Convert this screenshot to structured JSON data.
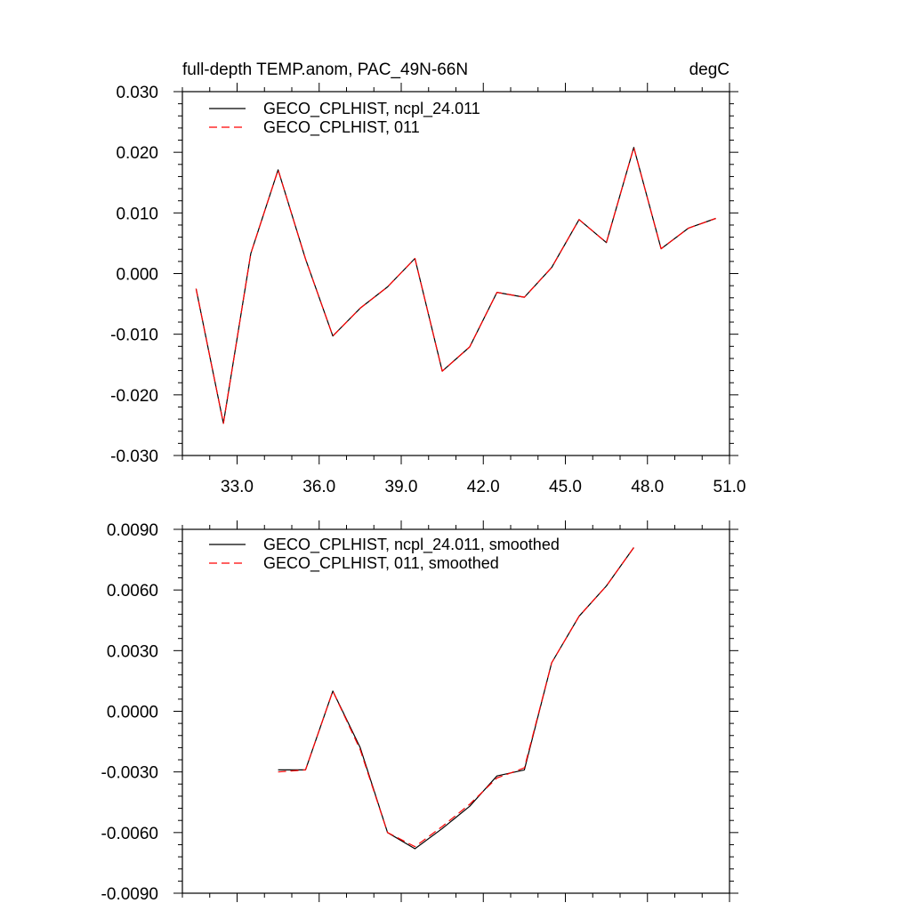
{
  "chart_data": [
    {
      "type": "line",
      "title": "full-depth TEMP.anom, PAC_49N-66N",
      "units": "degC",
      "xlim": [
        31,
        51
      ],
      "ylim": [
        -0.03,
        0.03
      ],
      "x_ticks": [
        33,
        36,
        39,
        42,
        45,
        48,
        51
      ],
      "x_tick_labels": [
        "33.0",
        "36.0",
        "39.0",
        "42.0",
        "45.0",
        "48.0",
        "51.0"
      ],
      "y_ticks": [
        -0.03,
        -0.02,
        -0.01,
        0,
        0.01,
        0.02,
        0.03
      ],
      "y_tick_labels": [
        "-0.030",
        "-0.020",
        "-0.010",
        "0.000",
        "0.010",
        "0.020",
        "0.030"
      ],
      "legend_position": "top-left",
      "series": [
        {
          "name": "GECO_CPLHIST, ncpl_24.011",
          "color": "#000000",
          "dash": "solid",
          "x": [
            31.5,
            32.5,
            33.5,
            34.5,
            35.5,
            36.5,
            37.5,
            38.5,
            39.5,
            40.5,
            41.5,
            42.5,
            43.5,
            44.5,
            45.5,
            46.5,
            47.5,
            48.5,
            49.5,
            50.5
          ],
          "y": [
            -0.0025,
            -0.0247,
            0.0033,
            0.0171,
            0.0024,
            -0.0103,
            -0.0057,
            -0.0022,
            0.0025,
            -0.0161,
            -0.0121,
            -0.0031,
            -0.0039,
            0.001,
            0.0089,
            0.0051,
            0.0208,
            0.0041,
            0.0075,
            0.0091
          ]
        },
        {
          "name": "GECO_CPLHIST, 011",
          "color": "#ff0000",
          "dash": "dashed",
          "x": [
            31.5,
            32.5,
            33.5,
            34.5,
            35.5,
            36.5,
            37.5,
            38.5,
            39.5,
            40.5,
            41.5,
            42.5,
            43.5,
            44.5,
            45.5,
            46.5,
            47.5,
            48.5,
            49.5,
            50.5
          ],
          "y": [
            -0.0025,
            -0.0247,
            0.0033,
            0.0171,
            0.0024,
            -0.0103,
            -0.0057,
            -0.0022,
            0.0025,
            -0.0161,
            -0.0121,
            -0.0031,
            -0.0039,
            0.001,
            0.0089,
            0.0051,
            0.0208,
            0.0041,
            0.0075,
            0.0091
          ]
        }
      ]
    },
    {
      "type": "line",
      "title": "",
      "units": "",
      "xlim": [
        31,
        51
      ],
      "ylim": [
        -0.009,
        0.009
      ],
      "x_ticks": [
        33,
        36,
        39,
        42,
        45,
        48,
        51
      ],
      "x_tick_labels": [],
      "y_ticks": [
        -0.009,
        -0.006,
        -0.003,
        0,
        0.003,
        0.006,
        0.009
      ],
      "y_tick_labels": [
        "-0.0090",
        "-0.0060",
        "-0.0030",
        "0.0000",
        "0.0030",
        "0.0060",
        "0.0090"
      ],
      "legend_position": "top-left",
      "series": [
        {
          "name": "GECO_CPLHIST, ncpl_24.011, smoothed",
          "color": "#000000",
          "dash": "solid",
          "x": [
            34.5,
            35.5,
            36.5,
            37.5,
            38.5,
            39.5,
            40.5,
            41.5,
            42.5,
            43.5,
            44.5,
            45.5,
            46.5,
            47.5
          ],
          "y": [
            -0.0029,
            -0.0029,
            0.001,
            -0.0018,
            -0.006,
            -0.0068,
            -0.0058,
            -0.0047,
            -0.0032,
            -0.0029,
            0.0024,
            0.0047,
            0.0062,
            0.0081
          ]
        },
        {
          "name": "GECO_CPLHIST, 011, smoothed",
          "color": "#ff0000",
          "dash": "dashed",
          "x": [
            34.5,
            35.5,
            36.5,
            37.5,
            38.5,
            39.5,
            40.5,
            41.5,
            42.5,
            43.5,
            44.5,
            45.5,
            46.5,
            47.5
          ],
          "y": [
            -0.003,
            -0.0029,
            0.001,
            -0.0019,
            -0.006,
            -0.0067,
            -0.0057,
            -0.0046,
            -0.0033,
            -0.0028,
            0.0024,
            0.0047,
            0.0062,
            0.0081
          ]
        }
      ]
    }
  ]
}
